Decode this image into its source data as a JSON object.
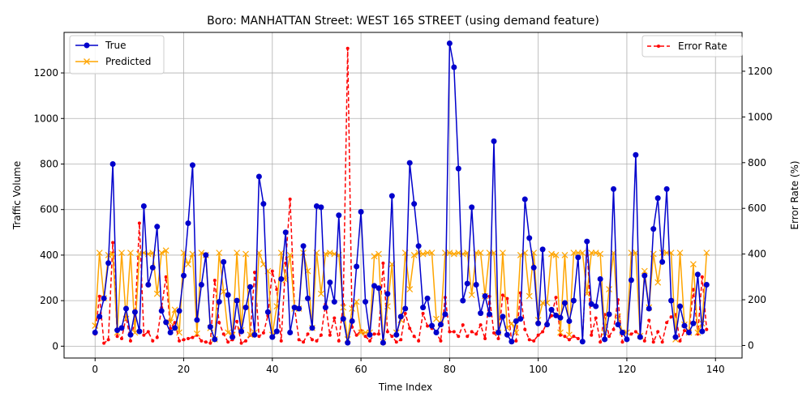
{
  "chart_data": {
    "type": "line",
    "title": "Boro: MANHATTAN Street: WEST 165 STREET (using demand feature)",
    "xlabel": "Time Index",
    "ylabel": "Traffic Volume",
    "y2label": "Error Rate (%)",
    "xlim": [
      -7,
      146
    ],
    "ylim": [
      -52,
      1378
    ],
    "y2lim": [
      -55,
      1370
    ],
    "xticks": [
      0,
      20,
      40,
      60,
      80,
      100,
      120,
      140
    ],
    "yticks": [
      0,
      200,
      400,
      600,
      800,
      1000,
      1200
    ],
    "y2ticks": [
      0,
      200,
      400,
      600,
      800,
      1000,
      1200
    ],
    "grid": true,
    "legend_left_position": "upper left",
    "legend_right_position": "upper right",
    "series": [
      {
        "name": "True",
        "axis": "left",
        "color": "#0000cc",
        "marker": "circle",
        "linestyle": "solid",
        "values": [
          60,
          130,
          210,
          365,
          800,
          70,
          80,
          165,
          50,
          150,
          65,
          615,
          270,
          345,
          525,
          155,
          105,
          60,
          80,
          155,
          310,
          540,
          795,
          115,
          270,
          400,
          85,
          30,
          195,
          370,
          225,
          40,
          200,
          65,
          170,
          260,
          50,
          745,
          625,
          150,
          40,
          65,
          295,
          500,
          60,
          170,
          165,
          440,
          210,
          80,
          615,
          610,
          170,
          280,
          195,
          575,
          120,
          15,
          110,
          350,
          590,
          195,
          50,
          265,
          255,
          15,
          230,
          660,
          50,
          130,
          165,
          805,
          625,
          440,
          170,
          210,
          90,
          60,
          95,
          140,
          1330,
          1225,
          780,
          200,
          275,
          610,
          270,
          145,
          220,
          140,
          900,
          60,
          130,
          50,
          20,
          110,
          120,
          645,
          475,
          345,
          100,
          425,
          95,
          160,
          135,
          125,
          190,
          110,
          200,
          390,
          20,
          460,
          185,
          175,
          295,
          30,
          140,
          690,
          95,
          60,
          30,
          290,
          840,
          40,
          310,
          165,
          515,
          650,
          370,
          690,
          200,
          40,
          175,
          90,
          60,
          100,
          315,
          65,
          270
        ]
      },
      {
        "name": "Predicted",
        "axis": "left",
        "color": "#ffa500",
        "marker": "x",
        "linestyle": "solid",
        "values": [
          90,
          410,
          210,
          400,
          405,
          60,
          410,
          120,
          410,
          60,
          405,
          410,
          405,
          410,
          230,
          410,
          420,
          105,
          160,
          60,
          410,
          360,
          405,
          55,
          410,
          400,
          80,
          30,
          410,
          240,
          60,
          50,
          410,
          70,
          405,
          50,
          60,
          410,
          360,
          330,
          50,
          175,
          410,
          290,
          400,
          165,
          165,
          410,
          330,
          80,
          410,
          230,
          405,
          410,
          405,
          400,
          170,
          30,
          165,
          195,
          60,
          60,
          60,
          395,
          405,
          20,
          175,
          360,
          60,
          115,
          410,
          250,
          400,
          410,
          405,
          410,
          410,
          120,
          100,
          410,
          410,
          405,
          410,
          405,
          410,
          225,
          410,
          410,
          220,
          410,
          410,
          60,
          410,
          80,
          100,
          60,
          400,
          410,
          220,
          410,
          115,
          190,
          190,
          405,
          400,
          60,
          400,
          50,
          410,
          410,
          410,
          230,
          410,
          410,
          405,
          60,
          250,
          410,
          130,
          60,
          60,
          410,
          410,
          45,
          330,
          170,
          405,
          280,
          410,
          410,
          410,
          30,
          410,
          95,
          60,
          360,
          60,
          100,
          410
        ]
      },
      {
        "name": "Error Rate",
        "axis": "right",
        "color": "#ff0000",
        "marker": "point",
        "linestyle": "dashed",
        "values": [
          50,
          215,
          10,
          25,
          450,
          40,
          30,
          125,
          20,
          110,
          535,
          45,
          60,
          20,
          35,
          165,
          300,
          75,
          100,
          20,
          25,
          30,
          35,
          45,
          20,
          15,
          10,
          285,
          100,
          50,
          15,
          25,
          105,
          10,
          20,
          45,
          320,
          40,
          55,
          130,
          325,
          245,
          20,
          360,
          640,
          170,
          25,
          15,
          50,
          25,
          20,
          45,
          180,
          45,
          120,
          20,
          180,
          1300,
          80,
          45,
          65,
          40,
          20,
          50,
          50,
          360,
          60,
          40,
          15,
          25,
          140,
          75,
          40,
          20,
          140,
          85,
          75,
          55,
          20,
          210,
          60,
          60,
          40,
          90,
          40,
          60,
          50,
          90,
          30,
          215,
          55,
          30,
          220,
          205,
          15,
          20,
          230,
          70,
          25,
          20,
          45,
          60,
          100,
          130,
          210,
          45,
          40,
          25,
          40,
          30,
          20,
          450,
          45,
          120,
          15,
          135,
          40,
          70,
          200,
          15,
          30,
          50,
          60,
          45,
          20,
          110,
          15,
          60,
          15,
          100,
          125,
          135,
          20,
          65,
          55,
          245,
          50,
          300,
          70
        ]
      }
    ]
  }
}
